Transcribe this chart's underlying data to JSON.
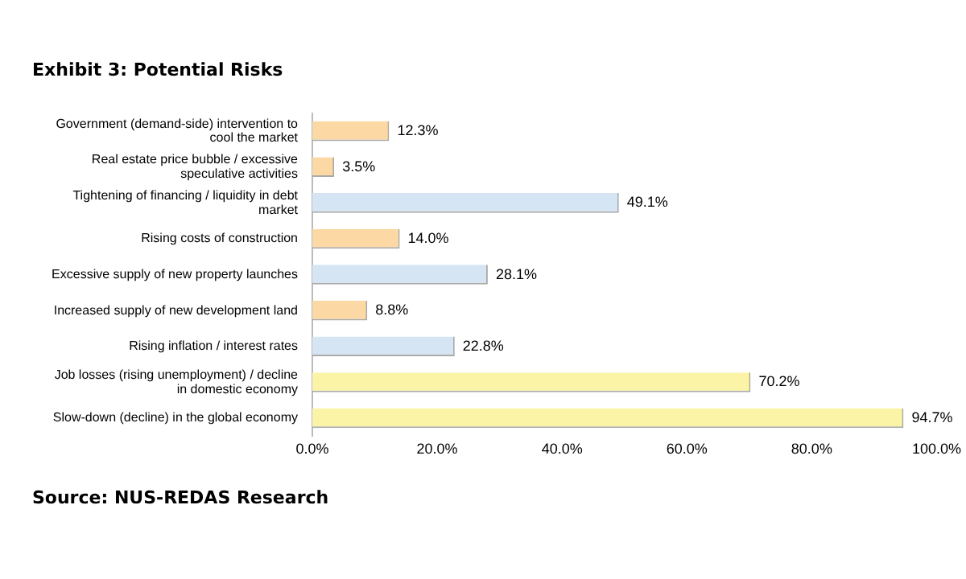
{
  "chart_data": {
    "type": "bar",
    "orientation": "horizontal",
    "title": "Exhibit 3: Potential Risks",
    "categories": [
      "Government (demand-side) intervention to cool the market",
      "Real estate price bubble / excessive speculative activities",
      "Tightening of financing / liquidity in debt market",
      "Rising costs of construction",
      "Excessive supply of new property launches",
      "Increased supply of new development land",
      "Rising inflation / interest rates",
      "Job losses (rising unemployment) / decline in domestic economy",
      "Slow-down (decline) in the global economy"
    ],
    "values": [
      12.3,
      3.5,
      49.1,
      14.0,
      28.1,
      8.8,
      22.8,
      70.2,
      94.7
    ],
    "colors": [
      "#fcd9a4",
      "#fcd9a4",
      "#d5e5f4",
      "#fcd9a4",
      "#d5e5f4",
      "#fcd9a4",
      "#d5e5f4",
      "#fbf3a6",
      "#fbf3a6"
    ],
    "value_labels": [
      "12.3%",
      "3.5%",
      "49.1%",
      "14.0%",
      "28.1%",
      "8.8%",
      "22.8%",
      "70.2%",
      "94.7%"
    ],
    "xlim": [
      0,
      100
    ],
    "xticks": [
      {
        "value": 0,
        "label": "0.0%"
      },
      {
        "value": 20,
        "label": "20.0%"
      },
      {
        "value": 40,
        "label": "40.0%"
      },
      {
        "value": 60,
        "label": "60.0%"
      },
      {
        "value": 80,
        "label": "80.0%"
      },
      {
        "value": 100,
        "label": "100.0%"
      }
    ],
    "grid": false,
    "legend": false,
    "annotations": [
      "Source: NUS-REDAS Research"
    ]
  }
}
